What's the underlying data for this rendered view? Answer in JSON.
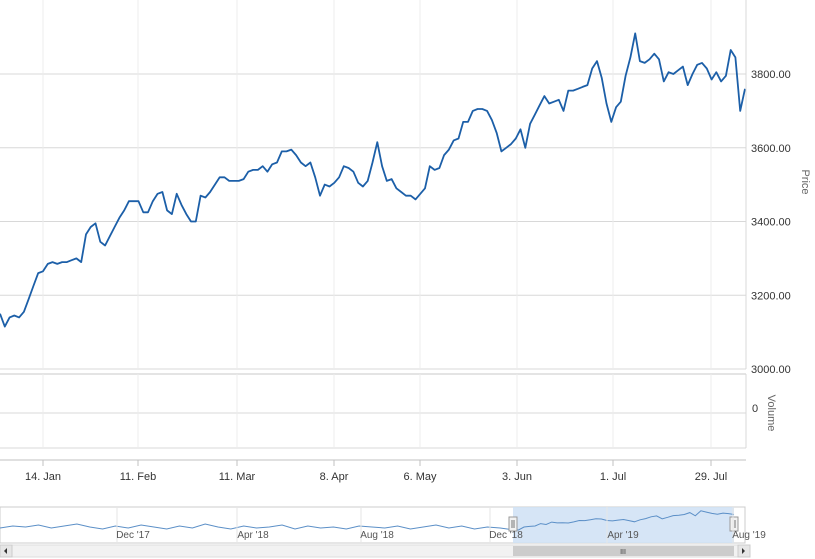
{
  "chart_data": {
    "type": "line",
    "series": [
      {
        "values": [
          3150,
          3115,
          3140,
          3145,
          3140,
          3155,
          3190,
          3225,
          3260,
          3265,
          3285,
          3290,
          3285,
          3290,
          3290,
          3295,
          3300,
          3290,
          3365,
          3385,
          3395,
          3345,
          3335,
          3360,
          3385,
          3410,
          3430,
          3455,
          3455,
          3455,
          3425,
          3425,
          3455,
          3475,
          3480,
          3430,
          3420,
          3475,
          3445,
          3420,
          3400,
          3400,
          3470,
          3465,
          3480,
          3500,
          3520,
          3520,
          3510,
          3510,
          3510,
          3515,
          3535,
          3540,
          3540,
          3550,
          3535,
          3555,
          3560,
          3590,
          3590,
          3595,
          3580,
          3560,
          3550,
          3560,
          3520,
          3470,
          3500,
          3495,
          3505,
          3520,
          3550,
          3545,
          3535,
          3505,
          3495,
          3510,
          3560,
          3615,
          3550,
          3510,
          3515,
          3490,
          3480,
          3470,
          3470,
          3460,
          3475,
          3490,
          3550,
          3540,
          3545,
          3580,
          3595,
          3620,
          3625,
          3670,
          3670,
          3700,
          3705,
          3705,
          3700,
          3675,
          3640,
          3590,
          3600,
          3610,
          3625,
          3650,
          3600,
          3665,
          3690,
          3715,
          3740,
          3720,
          3725,
          3730,
          3700,
          3755,
          3755,
          3760,
          3765,
          3770,
          3815,
          3835,
          3790,
          3720,
          3670,
          3710,
          3725,
          3795,
          3845,
          3910,
          3835,
          3830,
          3840,
          3855,
          3840,
          3780,
          3805,
          3800,
          3810,
          3820,
          3770,
          3800,
          3825,
          3830,
          3815,
          3785,
          3805,
          3780,
          3795,
          3865,
          3845,
          3700,
          3760
        ]
      }
    ],
    "x_tick_labels": [
      "14. Jan",
      "11. Feb",
      "11. Mar",
      "8. Apr",
      "6. May",
      "3. Jun",
      "1. Jul",
      "29. Jul"
    ],
    "y_ticks": [
      "3000.00",
      "3200.00",
      "3400.00",
      "3600.00",
      "3800.00"
    ],
    "ylim": [
      3000,
      3900
    ],
    "ylabel": "Price",
    "volume": {
      "ylabel": "Volume",
      "tick": "0"
    },
    "navigator": {
      "labels": [
        "Dec '17",
        "Apr '18",
        "Aug '18",
        "Dec '18",
        "Apr '19",
        "Aug '19"
      ],
      "scroll_glyph": "III"
    },
    "colors": {
      "line": "#1c5fa8",
      "grid": "#d8d8d8",
      "navigator_mask": "#cfe0f4",
      "navigator_line": "#5b8fc7"
    },
    "grid": true
  }
}
